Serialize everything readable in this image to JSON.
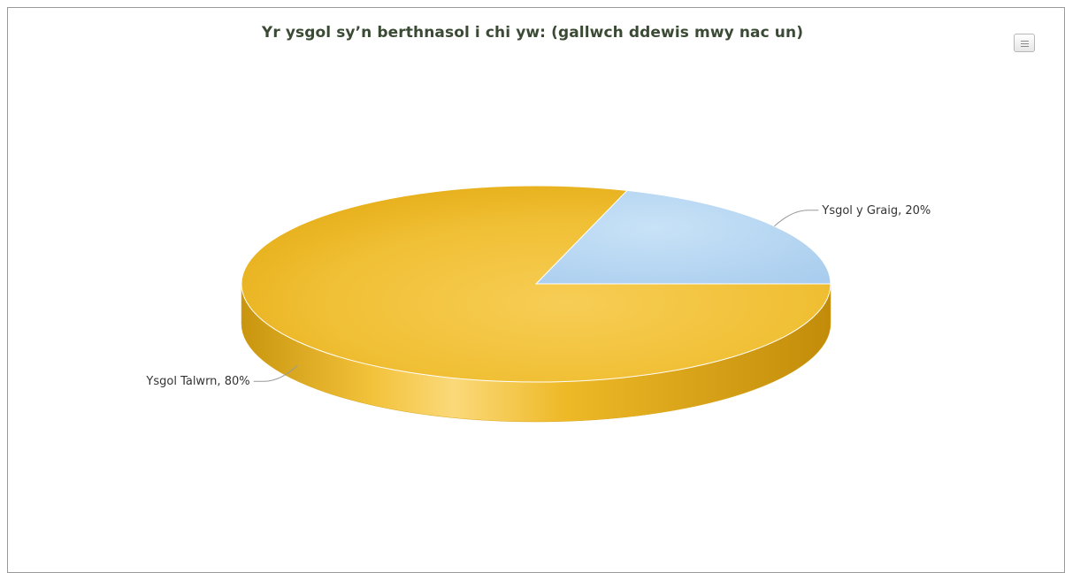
{
  "chart_data": {
    "type": "pie",
    "title": "Yr ysgol sy’n berthnasol i chi yw: (gallwch ddewis mwy nac un)",
    "slices": [
      {
        "name": "Ysgol y Graig",
        "value": 20,
        "label": "Ysgol y Graig, 20%",
        "color": "#b5d6f0"
      },
      {
        "name": "Ysgol Talwrn",
        "value": 80,
        "label": "Ysgol Talwrn, 80%",
        "color": "#eeba28"
      }
    ],
    "style": "3d",
    "legend": "none"
  },
  "menu_icon": "hamburger-menu-icon"
}
